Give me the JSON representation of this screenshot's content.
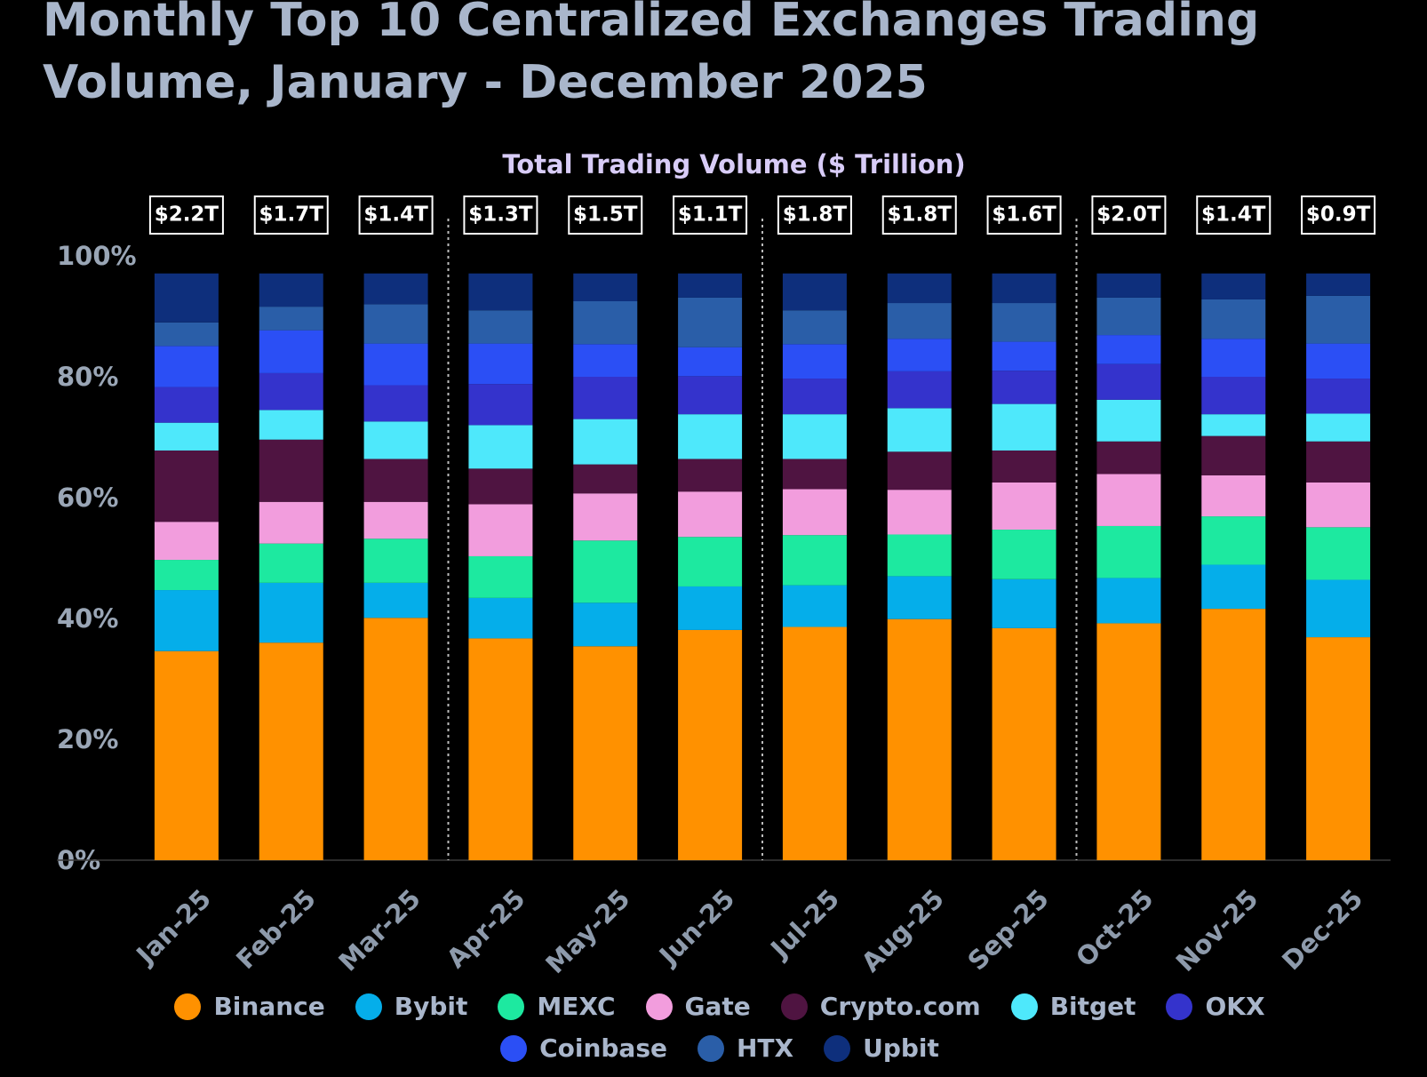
{
  "chart_data": {
    "type": "stacked_bar",
    "title": "Monthly Top 10 Centralized Exchanges Trading Volume, January - December 2025",
    "subtitle": "Total Trading Volume ($ Trillion)",
    "categories": [
      "Jan-25",
      "Feb-25",
      "Mar-25",
      "Apr-25",
      "May-25",
      "Jun-25",
      "Jul-25",
      "Aug-25",
      "Sep-25",
      "Oct-25",
      "Nov-25",
      "Dec-25"
    ],
    "ylim": [
      0,
      100
    ],
    "yticks": [
      {
        "value": 0,
        "label": "0%"
      },
      {
        "value": 20,
        "label": "20%"
      },
      {
        "value": 40,
        "label": "40%"
      },
      {
        "value": 60,
        "label": "60%"
      },
      {
        "value": 80,
        "label": "80%"
      },
      {
        "value": 100,
        "label": "100%"
      }
    ],
    "grid": false,
    "legend": "bottom",
    "totals": {
      "values": [
        2.2,
        1.7,
        1.4,
        1.3,
        1.5,
        1.1,
        1.8,
        1.8,
        1.6,
        2.0,
        1.4,
        0.9
      ],
      "value_labels": [
        "$2.2T",
        "$1.7T",
        "$1.4T",
        "$1.3T",
        "$1.5T",
        "$1.1T",
        "$1.8T",
        "$1.8T",
        "$1.6T",
        "$2.0T",
        "$1.4T",
        "$0.9T"
      ]
    },
    "series": [
      {
        "name": "Binance",
        "color": "#ff9100",
        "values": [
          34.6,
          36.0,
          40.1,
          36.7,
          35.4,
          38.1,
          38.6,
          39.9,
          38.4,
          39.2,
          41.6,
          36.9
        ]
      },
      {
        "name": "Bybit",
        "color": "#05aeea",
        "values": [
          10.1,
          9.9,
          5.8,
          6.7,
          7.2,
          7.2,
          6.9,
          7.1,
          8.1,
          7.5,
          7.3,
          9.5
        ]
      },
      {
        "name": "MEXC",
        "color": "#1de9a0",
        "values": [
          5.0,
          6.5,
          7.3,
          6.9,
          10.3,
          8.2,
          8.3,
          6.9,
          8.2,
          8.6,
          8.0,
          8.7
        ]
      },
      {
        "name": "Gate",
        "color": "#f29ddd",
        "values": [
          6.3,
          6.9,
          6.1,
          8.6,
          7.8,
          7.5,
          7.6,
          7.4,
          7.8,
          8.6,
          6.8,
          7.4
        ]
      },
      {
        "name": "Crypto.com",
        "color": "#4f1441",
        "values": [
          11.8,
          10.3,
          7.1,
          5.9,
          4.8,
          5.4,
          5.0,
          6.3,
          5.3,
          5.4,
          6.5,
          6.8
        ]
      },
      {
        "name": "Bitget",
        "color": "#4ee8fb",
        "values": [
          4.6,
          4.9,
          6.2,
          7.2,
          7.5,
          7.4,
          7.4,
          7.2,
          7.7,
          6.9,
          3.6,
          4.6
        ]
      },
      {
        "name": "OKX",
        "color": "#3433cc",
        "values": [
          5.9,
          6.1,
          6.0,
          6.8,
          7.0,
          6.3,
          5.9,
          6.1,
          5.5,
          5.9,
          6.2,
          5.8
        ]
      },
      {
        "name": "Coinbase",
        "color": "#2b4ff5",
        "values": [
          6.8,
          7.1,
          6.9,
          6.7,
          5.4,
          4.8,
          5.7,
          5.4,
          4.8,
          4.8,
          6.3,
          5.8
        ]
      },
      {
        "name": "HTX",
        "color": "#2a5ea8",
        "values": [
          3.9,
          3.9,
          6.5,
          5.5,
          7.1,
          8.2,
          5.6,
          5.9,
          6.4,
          6.2,
          6.5,
          7.9
        ]
      },
      {
        "name": "Upbit",
        "color": "#0e2f7c",
        "values": [
          8.1,
          5.5,
          5.1,
          6.1,
          4.6,
          4.0,
          6.1,
          4.9,
          4.9,
          4.0,
          4.3,
          3.7
        ]
      }
    ]
  }
}
